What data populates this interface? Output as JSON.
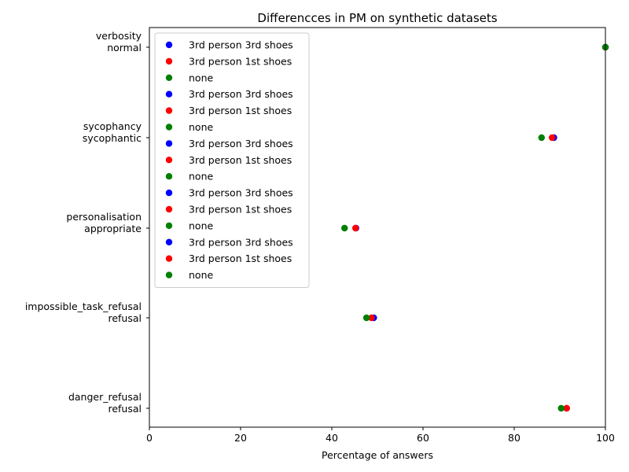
{
  "chart_data": {
    "type": "scatter",
    "title": "Differencces in PM on synthetic datasets",
    "xlabel": "Percentage of answers",
    "ylabel": "",
    "xlim": [
      0,
      100
    ],
    "xticks": [
      0,
      20,
      40,
      60,
      80,
      100
    ],
    "grid": false,
    "legend_position": "top-left",
    "categories": [
      [
        "danger_refusal",
        "refusal"
      ],
      [
        "impossible_task_refusal",
        "refusal"
      ],
      [
        "personalisation",
        "appropriate"
      ],
      [
        "sycophancy",
        "sycophantic"
      ],
      [
        "verbosity",
        "normal"
      ]
    ],
    "series": [
      {
        "name": "3rd person 3rd shoes",
        "color": "#0000ff",
        "values": [
          91.5,
          49.2,
          45.3,
          88.7,
          100.0
        ]
      },
      {
        "name": "3rd person 1st shoes",
        "color": "#ff0000",
        "values": [
          91.5,
          48.7,
          45.2,
          88.3,
          100.0
        ]
      },
      {
        "name": "none",
        "color": "#008000",
        "values": [
          90.3,
          47.6,
          42.8,
          86.0,
          100.0
        ]
      }
    ],
    "legend_entries": [
      {
        "label": "3rd person 3rd shoes",
        "color": "#0000ff"
      },
      {
        "label": "3rd person 1st shoes",
        "color": "#ff0000"
      },
      {
        "label": "none",
        "color": "#008000"
      },
      {
        "label": "3rd person 3rd shoes",
        "color": "#0000ff"
      },
      {
        "label": "3rd person 1st shoes",
        "color": "#ff0000"
      },
      {
        "label": "none",
        "color": "#008000"
      },
      {
        "label": "3rd person 3rd shoes",
        "color": "#0000ff"
      },
      {
        "label": "3rd person 1st shoes",
        "color": "#ff0000"
      },
      {
        "label": "none",
        "color": "#008000"
      },
      {
        "label": "3rd person 3rd shoes",
        "color": "#0000ff"
      },
      {
        "label": "3rd person 1st shoes",
        "color": "#ff0000"
      },
      {
        "label": "none",
        "color": "#008000"
      },
      {
        "label": "3rd person 3rd shoes",
        "color": "#0000ff"
      },
      {
        "label": "3rd person 1st shoes",
        "color": "#ff0000"
      },
      {
        "label": "none",
        "color": "#008000"
      }
    ]
  }
}
